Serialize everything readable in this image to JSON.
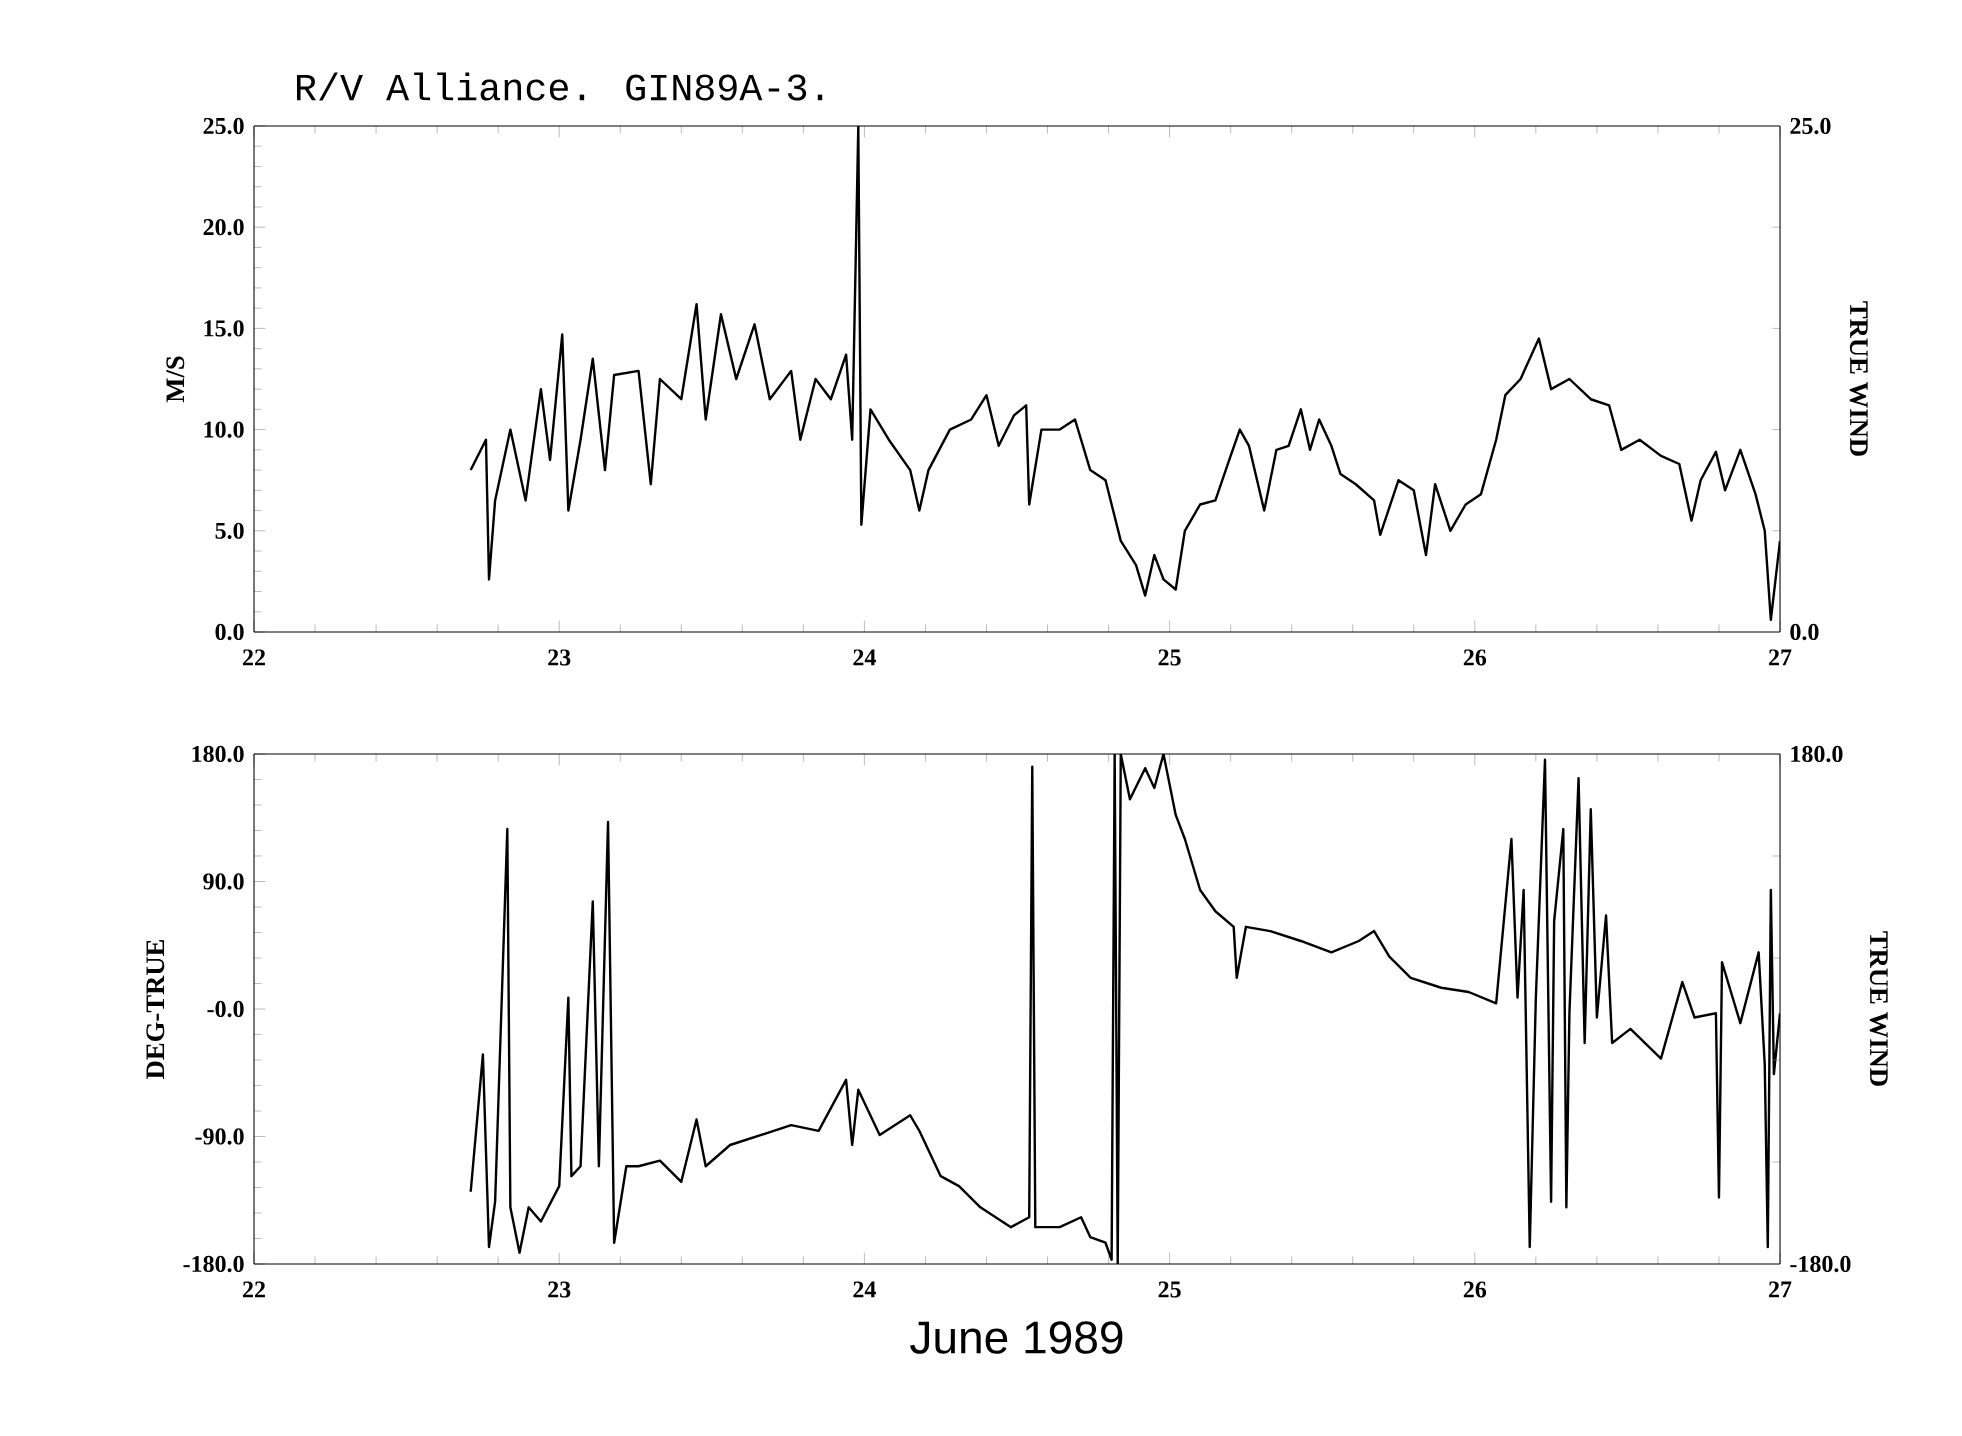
{
  "chart_data": [
    {
      "type": "line",
      "title": "R/V Alliance. GIN89A-3.",
      "ylabel": "M/S",
      "y2label": "TRUE WIND",
      "color": "#000000",
      "xlim": [
        22,
        27
      ],
      "xticks": [
        22,
        23,
        24,
        25,
        26,
        27
      ],
      "ylim": [
        0,
        25
      ],
      "yticks": [
        {
          "value": 0,
          "label": "0.0"
        },
        {
          "value": 5,
          "label": "5.0"
        },
        {
          "value": 10,
          "label": "10.0"
        },
        {
          "value": 15,
          "label": "15.0"
        },
        {
          "value": 20,
          "label": "20.0"
        },
        {
          "value": 25,
          "label": "25.0"
        }
      ],
      "y2lim": [
        0,
        25
      ],
      "y2ticks": [
        {
          "value": 0,
          "label": "0.0"
        },
        {
          "value": 25,
          "label": "25.0"
        }
      ],
      "x": [
        22.71,
        22.76,
        22.77,
        22.79,
        22.84,
        22.89,
        22.94,
        22.97,
        23.01,
        23.03,
        23.07,
        23.11,
        23.15,
        23.18,
        23.26,
        23.3,
        23.33,
        23.4,
        23.45,
        23.48,
        23.53,
        23.58,
        23.64,
        23.69,
        23.76,
        23.79,
        23.84,
        23.89,
        23.94,
        23.96,
        23.98,
        23.99,
        24.02,
        24.08,
        24.15,
        24.18,
        24.21,
        24.28,
        24.35,
        24.4,
        24.44,
        24.49,
        24.53,
        24.54,
        24.58,
        24.64,
        24.69,
        24.74,
        24.79,
        24.84,
        24.89,
        24.92,
        24.95,
        24.98,
        25.02,
        25.05,
        25.1,
        25.15,
        25.2,
        25.23,
        25.26,
        25.31,
        25.35,
        25.39,
        25.43,
        25.46,
        25.49,
        25.53,
        25.56,
        25.61,
        25.67,
        25.69,
        25.75,
        25.8,
        25.84,
        25.87,
        25.92,
        25.97,
        26.02,
        26.07,
        26.1,
        26.15,
        26.21,
        26.25,
        26.31,
        26.38,
        26.44,
        26.48,
        26.54,
        26.61,
        26.67,
        26.71,
        26.74,
        26.79,
        26.82,
        26.87,
        26.92,
        26.95,
        26.97,
        27.0
      ],
      "values": [
        8.0,
        9.5,
        2.6,
        6.5,
        10.0,
        6.5,
        12.0,
        8.5,
        14.7,
        6.0,
        9.5,
        13.5,
        8.0,
        12.7,
        12.9,
        7.3,
        12.5,
        11.5,
        16.2,
        10.5,
        15.7,
        12.5,
        15.2,
        11.5,
        12.9,
        9.5,
        12.5,
        11.5,
        13.7,
        9.5,
        25,
        5.3,
        11.0,
        9.5,
        8.0,
        6.0,
        8.0,
        10.0,
        10.5,
        11.7,
        9.2,
        10.7,
        11.2,
        6.3,
        10.0,
        10.0,
        10.5,
        8.0,
        7.5,
        4.5,
        3.3,
        1.8,
        3.8,
        2.6,
        2.1,
        5.0,
        6.3,
        6.5,
        8.7,
        10.0,
        9.2,
        6.0,
        9.0,
        9.2,
        11.0,
        9.0,
        10.5,
        9.2,
        7.8,
        7.3,
        6.5,
        4.8,
        7.5,
        7.0,
        3.8,
        7.3,
        5.0,
        6.3,
        6.8,
        9.5,
        11.7,
        12.5,
        14.5,
        12.0,
        12.5,
        11.5,
        11.2,
        9.0,
        9.5,
        8.7,
        8.3,
        5.5,
        7.5,
        8.9,
        7.0,
        9.0,
        6.8,
        5.0,
        0.6,
        4.5
      ]
    },
    {
      "type": "line",
      "xlabel": "June 1989",
      "ylabel": "DEG-TRUE",
      "y2label": "TRUE WIND",
      "color": "#000000",
      "xlim": [
        22,
        27
      ],
      "xticks": [
        22,
        23,
        24,
        25,
        26,
        27
      ],
      "ylim": [
        -180,
        180
      ],
      "yticks": [
        {
          "value": -180,
          "label": "-180.0"
        },
        {
          "value": -90,
          "label": "-90.0"
        },
        {
          "value": 0,
          "label": "-0.0"
        },
        {
          "value": 90,
          "label": "90.0"
        },
        {
          "value": 180,
          "label": "180.0"
        }
      ],
      "y2lim": [
        -180,
        180
      ],
      "y2ticks": [
        {
          "value": -180,
          "label": "-180.0"
        },
        {
          "value": 180,
          "label": "180.0"
        }
      ],
      "x": [
        22.71,
        22.75,
        22.77,
        22.79,
        22.83,
        22.84,
        22.87,
        22.9,
        22.94,
        23.0,
        23.03,
        23.04,
        23.07,
        23.11,
        23.13,
        23.16,
        23.18,
        23.22,
        23.26,
        23.33,
        23.4,
        23.45,
        23.48,
        23.56,
        23.66,
        23.76,
        23.85,
        23.94,
        23.96,
        23.98,
        24.05,
        24.15,
        24.18,
        24.25,
        24.31,
        24.38,
        24.48,
        24.54,
        24.55,
        24.56,
        24.64,
        24.71,
        24.74,
        24.79,
        24.81,
        24.82,
        24.83,
        24.84,
        24.87,
        24.92,
        24.95,
        24.98,
        25.02,
        25.05,
        25.1,
        25.15,
        25.21,
        25.22,
        25.25,
        25.33,
        25.43,
        25.53,
        25.62,
        25.67,
        25.72,
        25.79,
        25.89,
        25.98,
        26.07,
        26.12,
        26.14,
        26.16,
        26.18,
        26.2,
        26.23,
        26.25,
        26.26,
        26.29,
        26.3,
        26.31,
        26.34,
        26.36,
        26.38,
        26.4,
        26.43,
        26.45,
        26.51,
        26.61,
        26.68,
        26.72,
        26.79,
        26.8,
        26.81,
        26.87,
        26.93,
        26.95,
        26.96,
        26.97,
        26.98,
        27.0
      ],
      "values": [
        -129,
        -32,
        -168,
        -136,
        127,
        -140,
        -172,
        -140,
        -150,
        -125,
        8,
        -118,
        -111,
        76,
        -111,
        132,
        -165,
        -111,
        -111,
        -107,
        -122,
        -78,
        -111,
        -96,
        -89,
        -82,
        -86,
        -50,
        -96,
        -57,
        -89,
        -75,
        -86,
        -118,
        -125,
        -140,
        -154,
        -147,
        171,
        -154,
        -154,
        -147,
        -161,
        -165,
        -177,
        180,
        -180,
        180,
        148,
        170,
        156,
        180,
        137,
        120,
        84,
        69,
        58,
        22,
        58,
        55,
        48,
        40,
        48,
        55,
        37,
        22,
        15,
        12,
        4,
        120,
        8,
        84,
        -168,
        8,
        176,
        -136,
        62,
        127,
        -140,
        -3,
        163,
        -24,
        141,
        -6,
        66,
        -24,
        -14,
        -35,
        19,
        -6,
        -3,
        -133,
        33,
        -10,
        40,
        -39,
        -168,
        84,
        -46,
        -3
      ]
    }
  ]
}
